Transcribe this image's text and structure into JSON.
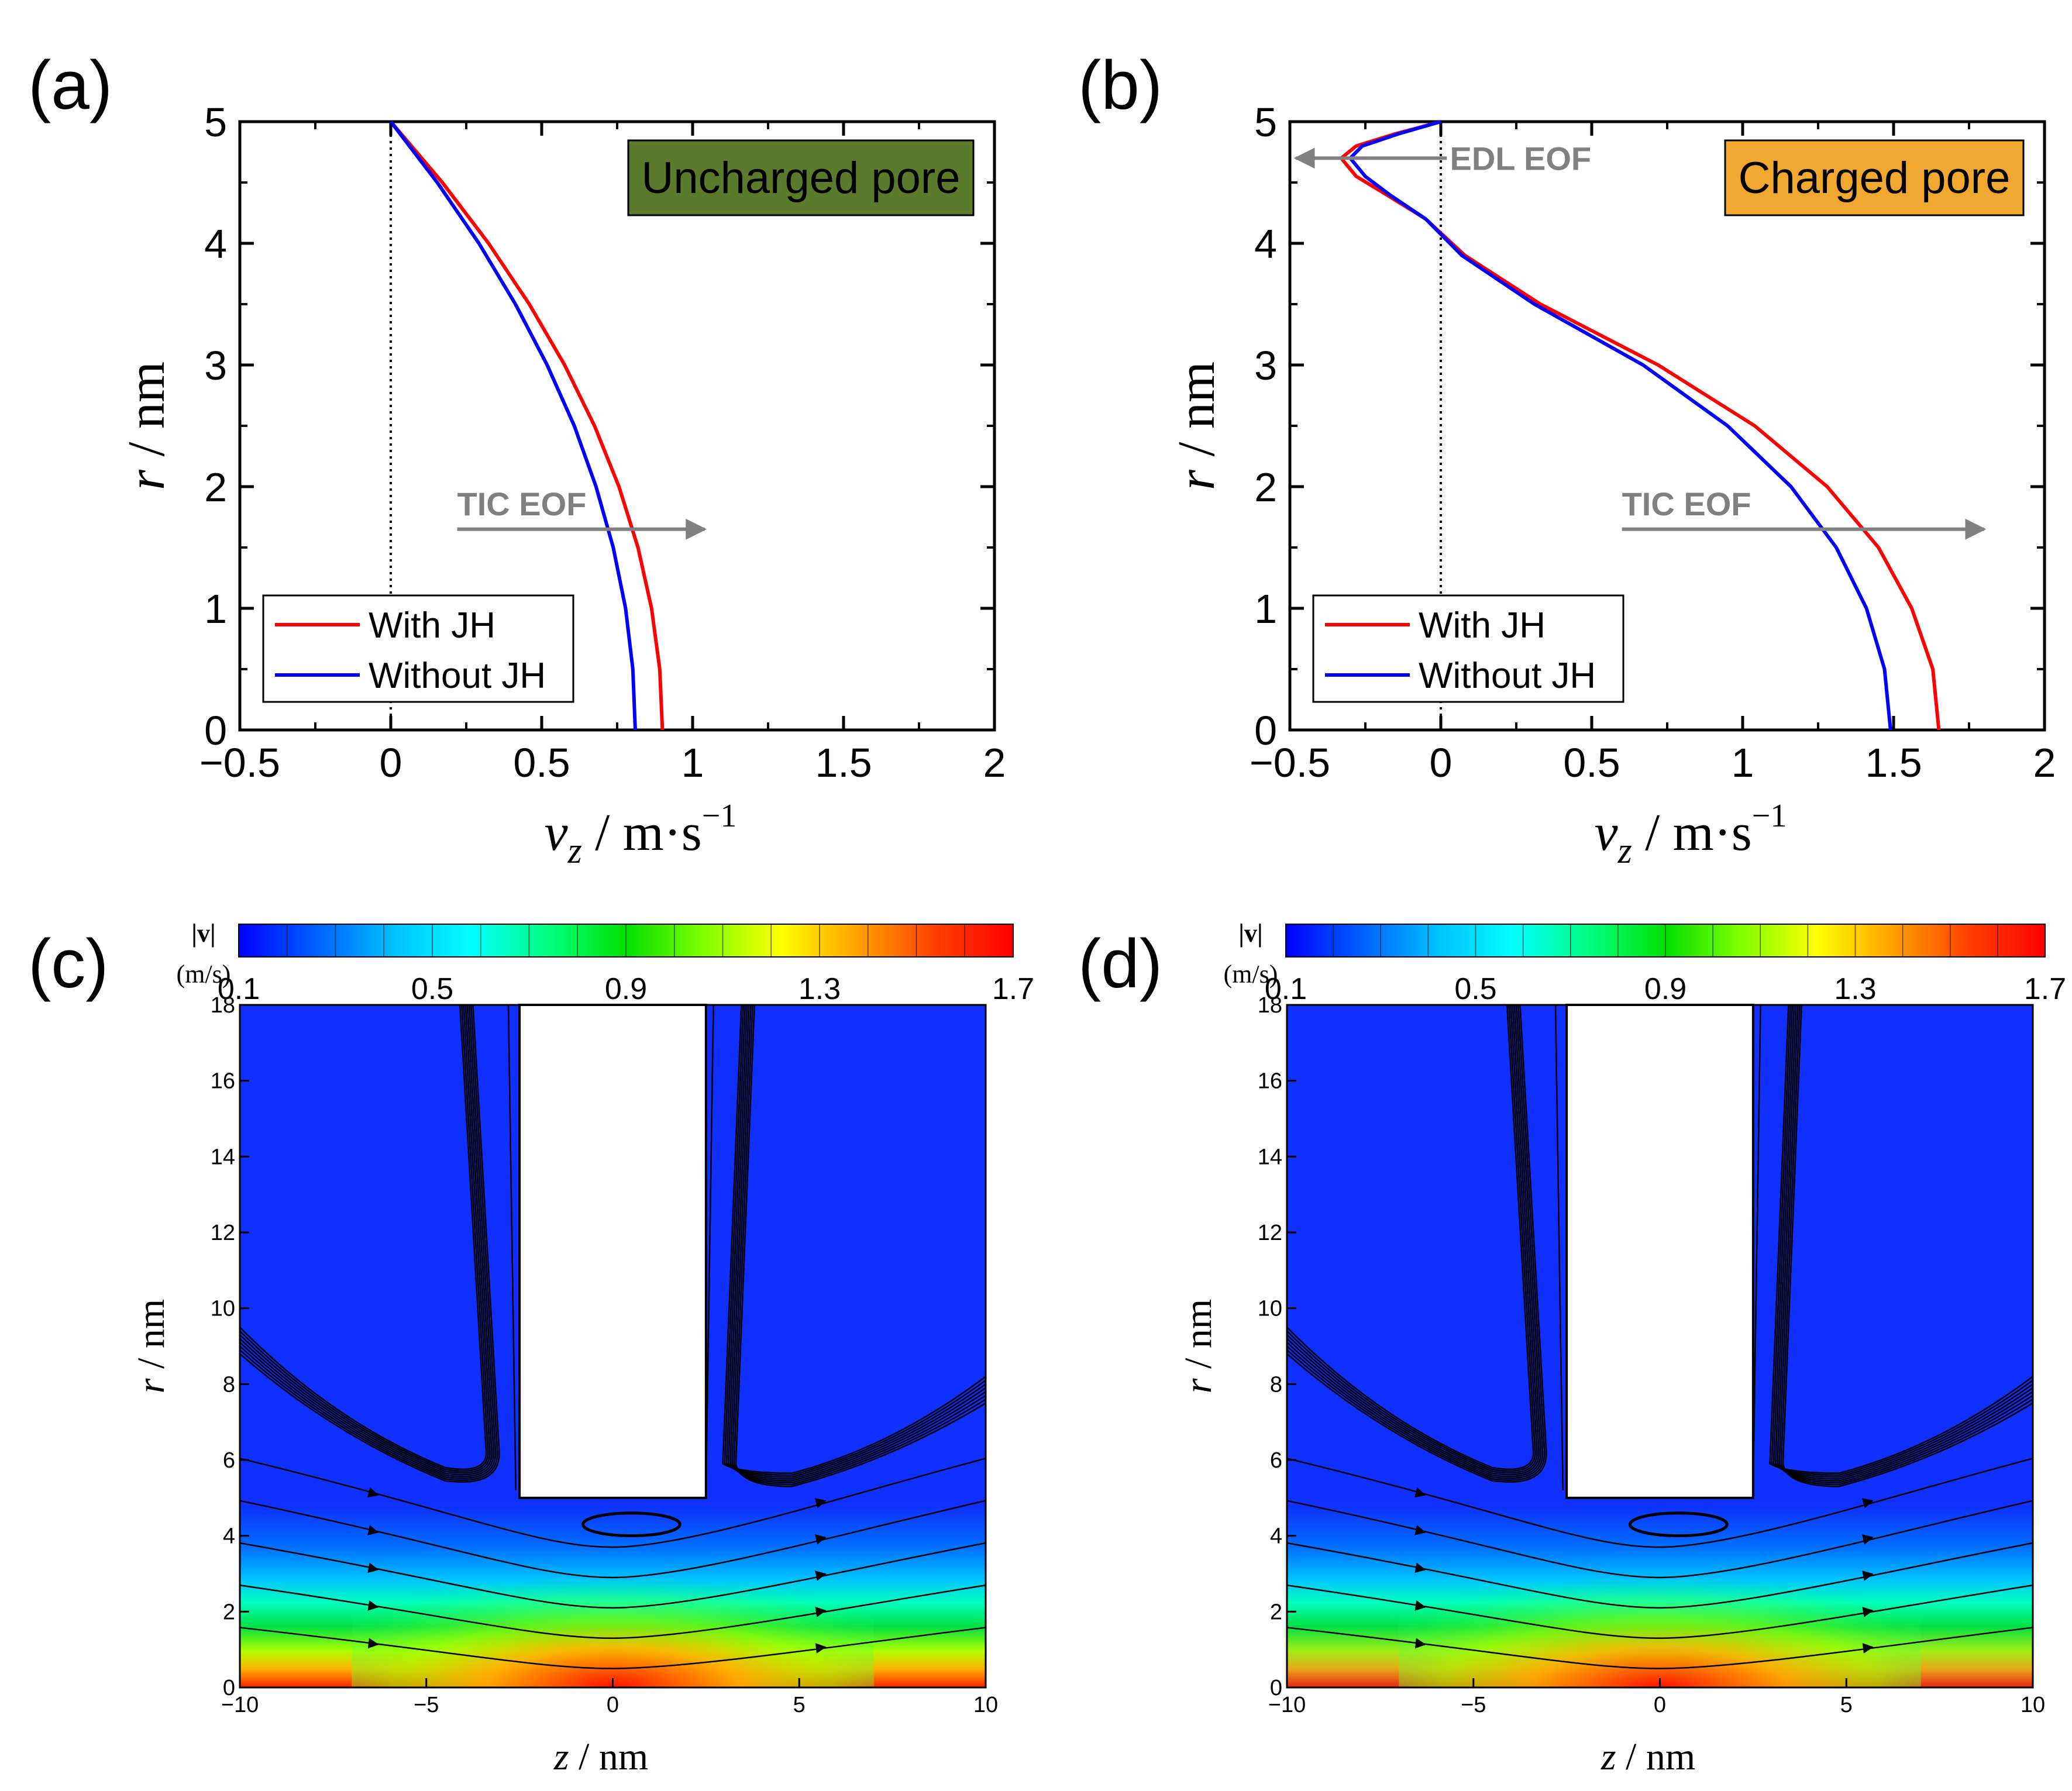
{
  "chart_data": [
    {
      "panel": "(a)",
      "type": "line",
      "tag": "Uncharged pore",
      "tag_color": "#5b7a2b",
      "xlabel_main": "v",
      "xlabel_sub": "z",
      "xlabel_unit": " / m·s",
      "xlabel_sup": "−1",
      "ylabel_main": "r",
      "ylabel_unit": " / nm",
      "xlim": [
        -0.5,
        2
      ],
      "ylim": [
        0,
        5
      ],
      "xticks": [
        "−0.5",
        "0",
        "0.5",
        "1",
        "1.5",
        "2"
      ],
      "xtick_values": [
        -0.5,
        0,
        0.5,
        1,
        1.5,
        2
      ],
      "yticks": [
        "0",
        "1",
        "2",
        "3",
        "4",
        "5"
      ],
      "ytick_values": [
        0,
        1,
        2,
        3,
        4,
        5
      ],
      "annotation": "TIC EOF",
      "legend": [
        "With JH",
        "Without JH"
      ],
      "series": [
        {
          "name": "With JH",
          "color": "#ff0000",
          "r": [
            0,
            0.5,
            1.0,
            1.5,
            2.0,
            2.5,
            3.0,
            3.5,
            4.0,
            4.5,
            5.0
          ],
          "v": [
            0.9,
            0.891,
            0.864,
            0.819,
            0.756,
            0.675,
            0.576,
            0.459,
            0.324,
            0.171,
            0.0
          ]
        },
        {
          "name": "Without JH",
          "color": "#0000ff",
          "r": [
            0,
            0.5,
            1.0,
            1.5,
            2.0,
            2.5,
            3.0,
            3.5,
            4.0,
            4.5,
            5.0
          ],
          "v": [
            0.81,
            0.802,
            0.778,
            0.737,
            0.68,
            0.608,
            0.518,
            0.413,
            0.292,
            0.154,
            0.0
          ]
        }
      ]
    },
    {
      "panel": "(b)",
      "type": "line",
      "tag": "Charged pore",
      "tag_color": "#f0a830",
      "xlabel_main": "v",
      "xlabel_sub": "z",
      "xlabel_unit": " / m·s",
      "xlabel_sup": "−1",
      "ylabel_main": "r",
      "ylabel_unit": " / nm",
      "xlim": [
        -0.5,
        2
      ],
      "ylim": [
        0,
        5
      ],
      "xticks": [
        "−0.5",
        "0",
        "0.5",
        "1",
        "1.5",
        "2"
      ],
      "xtick_values": [
        -0.5,
        0,
        0.5,
        1,
        1.5,
        2
      ],
      "yticks": [
        "0",
        "1",
        "2",
        "3",
        "4",
        "5"
      ],
      "ytick_values": [
        0,
        1,
        2,
        3,
        4,
        5
      ],
      "annotation": "TIC EOF",
      "annotation2": "EDL EOF",
      "legend": [
        "With JH",
        "Without JH"
      ],
      "series": [
        {
          "name": "With JH",
          "color": "#ff0000",
          "r": [
            0,
            0.5,
            1.0,
            1.5,
            2.0,
            2.5,
            3.0,
            3.5,
            3.9,
            4.2,
            4.4,
            4.55,
            4.7,
            4.8,
            4.9,
            5.0
          ],
          "v": [
            1.65,
            1.63,
            1.56,
            1.45,
            1.28,
            1.04,
            0.72,
            0.33,
            0.08,
            -0.05,
            -0.18,
            -0.28,
            -0.33,
            -0.28,
            -0.15,
            0.0
          ]
        },
        {
          "name": "Without JH",
          "color": "#0000ff",
          "r": [
            0,
            0.5,
            1.0,
            1.5,
            2.0,
            2.5,
            3.0,
            3.5,
            3.9,
            4.2,
            4.4,
            4.55,
            4.7,
            4.8,
            4.9,
            5.0
          ],
          "v": [
            1.49,
            1.47,
            1.41,
            1.31,
            1.16,
            0.95,
            0.67,
            0.31,
            0.07,
            -0.05,
            -0.17,
            -0.25,
            -0.3,
            -0.26,
            -0.14,
            0.0
          ]
        }
      ]
    },
    {
      "panel": "(c)",
      "type": "heatmap",
      "xlabel_main": "z",
      "xlabel_unit": " / nm",
      "ylabel_main": "r",
      "ylabel_unit": " / nm",
      "xlim": [
        -10,
        10
      ],
      "ylim": [
        0,
        18
      ],
      "xticks": [
        "−10",
        "−5",
        "0",
        "5",
        "10"
      ],
      "xtick_values": [
        -10,
        -5,
        0,
        5,
        10
      ],
      "yticks": [
        "0",
        "2",
        "4",
        "6",
        "8",
        "10",
        "12",
        "14",
        "16",
        "18"
      ],
      "ytick_values": [
        0,
        2,
        4,
        6,
        8,
        10,
        12,
        14,
        16,
        18
      ],
      "colorbar_title": "|v|",
      "colorbar_unit": "(m/s)",
      "colorbar_labels": [
        "0.1",
        "0.5",
        "0.9",
        "1.3",
        "1.7"
      ],
      "colorbar_range": [
        0.1,
        1.7
      ],
      "membrane_z": [
        -2.5,
        2.5
      ],
      "pore_radius": 5,
      "peak_velocity": 1.7
    },
    {
      "panel": "(d)",
      "type": "heatmap",
      "xlabel_main": "z",
      "xlabel_unit": " / nm",
      "ylabel_main": "r",
      "ylabel_unit": " / nm",
      "xlim": [
        -10,
        10
      ],
      "ylim": [
        0,
        18
      ],
      "xticks": [
        "−10",
        "−5",
        "0",
        "5",
        "10"
      ],
      "xtick_values": [
        -10,
        -5,
        0,
        5,
        10
      ],
      "yticks": [
        "0",
        "2",
        "4",
        "6",
        "8",
        "10",
        "12",
        "14",
        "16",
        "18"
      ],
      "ytick_values": [
        0,
        2,
        4,
        6,
        8,
        10,
        12,
        14,
        16,
        18
      ],
      "colorbar_title": "|v|",
      "colorbar_unit": "(m/s)",
      "colorbar_labels": [
        "0.1",
        "0.5",
        "0.9",
        "1.3",
        "1.7"
      ],
      "colorbar_range": [
        0.1,
        1.7
      ],
      "membrane_z": [
        -2.5,
        2.5
      ],
      "pore_radius": 5,
      "peak_velocity": 1.55
    }
  ]
}
